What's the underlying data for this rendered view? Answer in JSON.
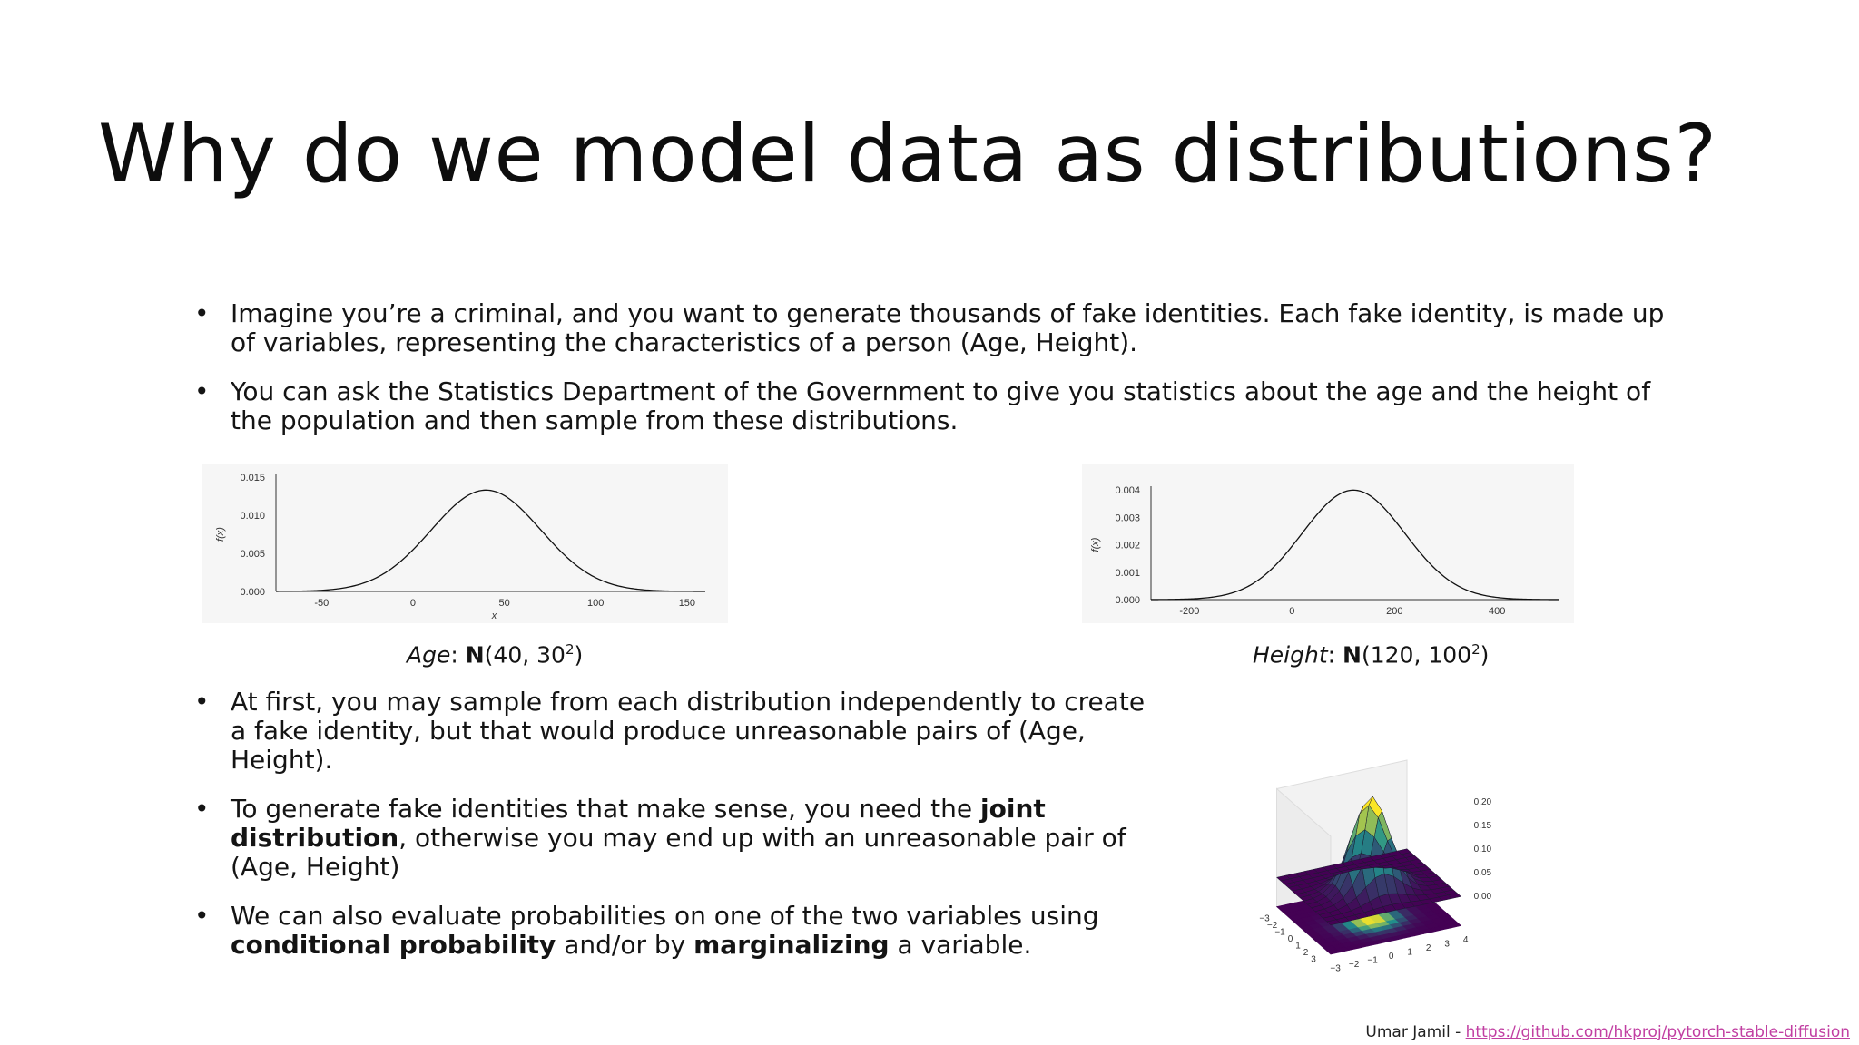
{
  "slide": {
    "title": "Why do we model data as distributions?",
    "bullets_top": [
      {
        "text": "Imagine you’re a criminal, and you want to generate thousands of fake identities. Each fake identity, is made up of variables, representing the characteristics of a person (Age, Height)."
      },
      {
        "text": "You can ask the Statistics Department of the Government to give you statistics about the age and the height of the population and then sample from these distributions."
      }
    ],
    "bullets_bottom": [
      {
        "parts": [
          {
            "t": "At first, you may sample from each distribution independently to create a fake identity, but that would produce unreasonable pairs of (Age, Height).",
            "b": false
          }
        ]
      },
      {
        "parts": [
          {
            "t": "To generate fake identities that make sense, you need the ",
            "b": false
          },
          {
            "t": "joint distribution",
            "b": true
          },
          {
            "t": ", otherwise you may end up with an unreasonable pair of (Age, Height)",
            "b": false
          }
        ]
      },
      {
        "parts": [
          {
            "t": "We can also evaluate probabilities on one of the two variables using ",
            "b": false
          },
          {
            "t": "conditional probability",
            "b": true
          },
          {
            "t": " and/or by ",
            "b": false
          },
          {
            "t": "marginalizing",
            "b": true
          },
          {
            "t": " a variable.",
            "b": false
          }
        ]
      }
    ],
    "captions": {
      "age": {
        "var": "Age",
        "sep": ": ",
        "dist": "N",
        "params": "(40, 30",
        "exp": "2",
        "close": ")"
      },
      "height": {
        "var": "Height",
        "sep": ": ",
        "dist": "N",
        "params": "(120, 100",
        "exp": "2",
        "close": ")"
      }
    },
    "footer": {
      "author": "Umar Jamil - ",
      "link": "https://github.com/hkproj/pytorch-stable-diffusion"
    }
  },
  "chart_data": [
    {
      "type": "line",
      "distribution": {
        "family": "normal",
        "mean": 40,
        "sd": 30
      },
      "xlim": [
        -75,
        160
      ],
      "ylim": [
        0,
        0.015
      ],
      "xticks": [
        "-50",
        "0",
        "50",
        "100",
        "150"
      ],
      "xtick_values": [
        -50,
        0,
        50,
        100,
        150
      ],
      "yticks": [
        "0.000",
        "0.005",
        "0.010",
        "0.015"
      ],
      "ytick_values": [
        0,
        0.005,
        0.01,
        0.015
      ],
      "xlabel": "x",
      "ylabel": "f(x)",
      "grid": false
    },
    {
      "type": "line",
      "distribution": {
        "family": "normal",
        "mean": 120,
        "sd": 100
      },
      "xlim": [
        -275,
        520
      ],
      "ylim": [
        0,
        0.004
      ],
      "xticks": [
        "-200",
        "0",
        "200",
        "400"
      ],
      "xtick_values": [
        -200,
        0,
        200,
        400
      ],
      "yticks": [
        "0.000",
        "0.001",
        "0.002",
        "0.003",
        "0.004"
      ],
      "ytick_values": [
        0,
        0.001,
        0.002,
        0.003,
        0.004
      ],
      "xlabel": "",
      "ylabel": "f(x)",
      "grid": false
    },
    {
      "type": "surface",
      "distribution": {
        "family": "bivariate-normal",
        "mean": [
          0,
          0
        ]
      },
      "x_ticks": [
        "−3",
        "−2",
        "−1",
        "0",
        "1",
        "2",
        "3",
        "4"
      ],
      "y_ticks": [
        "−3",
        "−2",
        "−1",
        "0",
        "1",
        "2",
        "3"
      ],
      "z_ticks": [
        "0.00",
        "0.05",
        "0.10",
        "0.15",
        "0.20"
      ],
      "colormap": "viridis",
      "colors": {
        "low": "#440154",
        "mid": "#21918c",
        "high": "#fde725"
      }
    }
  ]
}
